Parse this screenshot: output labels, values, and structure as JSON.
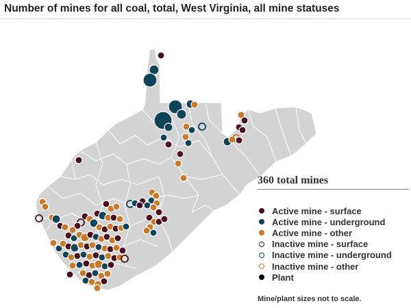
{
  "title": "Number of mines for all coal, total, West Virginia, all mine statuses",
  "total_label": "360 total mines",
  "note": "Mine/plant sizes not to scale.",
  "colors": {
    "active_surface": "#4a1020",
    "active_underground": "#0f4458",
    "active_other": "#c87a2a",
    "plant": "#000000",
    "state_fill": "#d3d3d3",
    "county_border": "#ffffff"
  },
  "legend": [
    {
      "label": "Active mine - surface",
      "color": "#4a1020",
      "filled": true
    },
    {
      "label": "Active mine - underground",
      "color": "#0f4458",
      "filled": true
    },
    {
      "label": "Active mine - other",
      "color": "#c87a2a",
      "filled": true
    },
    {
      "label": "Inactive mine - surface",
      "color": "#4a1020",
      "filled": false
    },
    {
      "label": "Inactive mine - underground",
      "color": "#0f4458",
      "filled": false
    },
    {
      "label": "Inactive mine - other",
      "color": "#c87a2a",
      "filled": false
    },
    {
      "label": "Plant",
      "color": "#000000",
      "filled": true
    }
  ]
}
